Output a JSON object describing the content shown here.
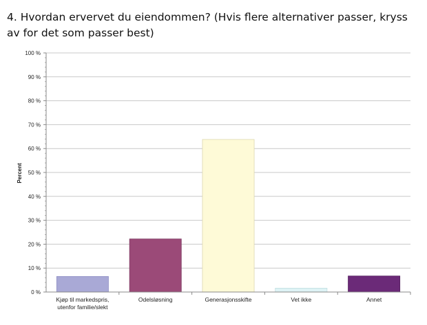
{
  "title": "4. Hvordan ervervet du eiendommen? (Hvis flere alternativer passer, kryss av for det som passer best)",
  "chart_data": {
    "type": "bar",
    "title": "4. Hvordan ervervet du eiendommen? (Hvis flere alternativer passer, kryss av for det som passer best)",
    "xlabel": "",
    "ylabel": "Percent",
    "ylim": [
      0,
      100
    ],
    "yticks": [
      0,
      10,
      20,
      30,
      40,
      50,
      60,
      70,
      80,
      90,
      100
    ],
    "ytick_labels": [
      "0 %",
      "10 %",
      "20 %",
      "30 %",
      "40 %",
      "50 %",
      "60 %",
      "70 %",
      "80 %",
      "90 %",
      "100 %"
    ],
    "grid": true,
    "legend": "none",
    "categories": [
      [
        "Kjøp til markedspris,",
        "utenfor familie/slekt"
      ],
      [
        "Odelsløsning"
      ],
      [
        "Generasjonsskifte"
      ],
      [
        "Vet ikke"
      ],
      [
        "Annet"
      ]
    ],
    "values": [
      6.5,
      22.2,
      63.8,
      1.6,
      6.7
    ],
    "colors": [
      "#a9a9d6",
      "#9b4a78",
      "#fefad7",
      "#def3f5",
      "#6b2a78"
    ],
    "edge_colors": [
      "#8f8fc4",
      "#7e3a62",
      "#ddd8b0",
      "#c0dde0",
      "#54205e"
    ]
  }
}
